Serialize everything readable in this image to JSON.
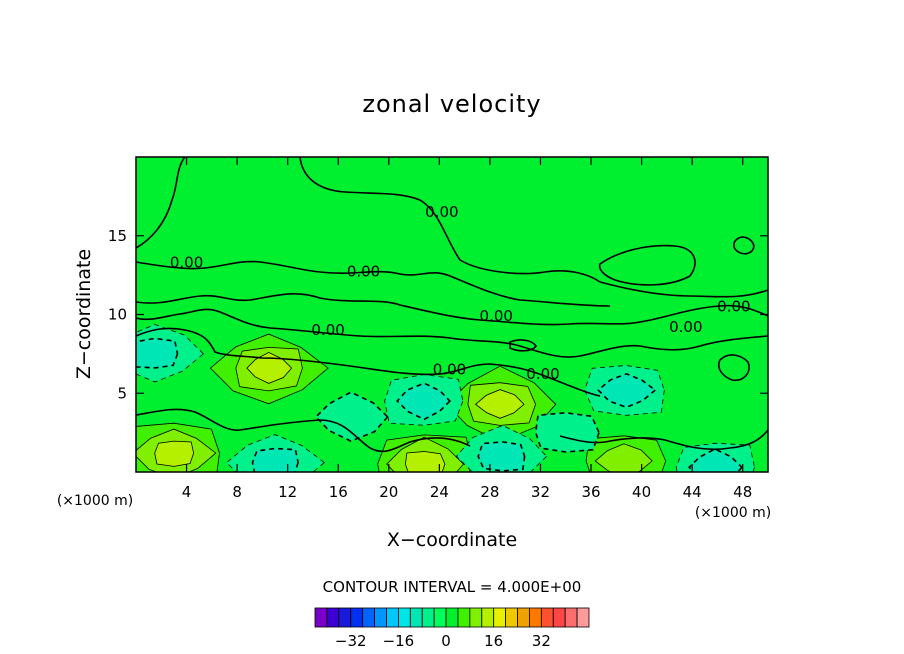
{
  "chart_data": {
    "type": "heatmap",
    "subtype": "filled-contour",
    "title": "zonal velocity",
    "xlabel": "X−coordinate",
    "ylabel": "Z−coordinate",
    "x_unit_label": "(×1000 m)",
    "y_unit_label": "(×1000 m)",
    "xlim": [
      0,
      50
    ],
    "ylim": [
      0,
      20
    ],
    "x_ticks": [
      4,
      8,
      12,
      16,
      20,
      24,
      28,
      32,
      36,
      40,
      44,
      48
    ],
    "x_tick_labels": [
      "4",
      "8",
      "12",
      "16",
      "20",
      "24",
      "28",
      "32",
      "36",
      "40",
      "44",
      "48"
    ],
    "y_ticks": [
      5,
      10,
      15
    ],
    "y_tick_labels": [
      "5",
      "10",
      "15"
    ],
    "contour_interval_text": "CONTOUR INTERVAL = 4.000E+00",
    "contour_labels": [
      {
        "text": "0.00",
        "x": 24.2,
        "y": 16.2
      },
      {
        "text": "0.00",
        "x": 4.0,
        "y": 13.0
      },
      {
        "text": "0.00",
        "x": 18.0,
        "y": 12.4
      },
      {
        "text": "0.00",
        "x": 15.2,
        "y": 8.7
      },
      {
        "text": "0.00",
        "x": 28.5,
        "y": 9.6
      },
      {
        "text": "0.00",
        "x": 24.8,
        "y": 6.2
      },
      {
        "text": "0.00",
        "x": 32.2,
        "y": 5.9
      },
      {
        "text": "0.00",
        "x": 43.5,
        "y": 8.9
      },
      {
        "text": "0.00",
        "x": 47.3,
        "y": 10.2
      }
    ],
    "regions": [
      {
        "x": 3,
        "y": 1.2,
        "v": 12
      },
      {
        "x": 10.5,
        "y": 6.6,
        "v": 12
      },
      {
        "x": 22.8,
        "y": 0.5,
        "v": 12
      },
      {
        "x": 28.8,
        "y": 4.3,
        "v": 12
      },
      {
        "x": 38.6,
        "y": 0.7,
        "v": 8
      },
      {
        "x": 1.5,
        "y": 7.5,
        "v": -8
      },
      {
        "x": 22.8,
        "y": 4.5,
        "v": -8
      },
      {
        "x": 29.0,
        "y": 1.0,
        "v": -8
      },
      {
        "x": 38.8,
        "y": 5.2,
        "v": -8
      },
      {
        "x": 11.0,
        "y": 0.6,
        "v": -8
      },
      {
        "x": 45.8,
        "y": 0.3,
        "v": -8
      },
      {
        "x": 17,
        "y": 3.5,
        "v": -4
      },
      {
        "x": 34,
        "y": 2.5,
        "v": -4
      }
    ],
    "colorbar": {
      "colors": [
        "#7a00c8",
        "#3c00d2",
        "#1a1ad8",
        "#0030f0",
        "#0064ff",
        "#0096ff",
        "#00c8ff",
        "#00e6e6",
        "#00e6b4",
        "#00f08c",
        "#00ff5a",
        "#00f030",
        "#40f000",
        "#80f000",
        "#b4f000",
        "#e6f000",
        "#f0c800",
        "#f0a000",
        "#ff7800",
        "#ff5030",
        "#ff4646",
        "#ff6e6e",
        "#ff9a9a"
      ],
      "ticks": [
        -32,
        -16,
        0,
        16,
        32
      ],
      "tick_labels": [
        "−32",
        "−16",
        "0",
        "16",
        "32"
      ],
      "vmin": -44,
      "vmax": 48
    }
  }
}
